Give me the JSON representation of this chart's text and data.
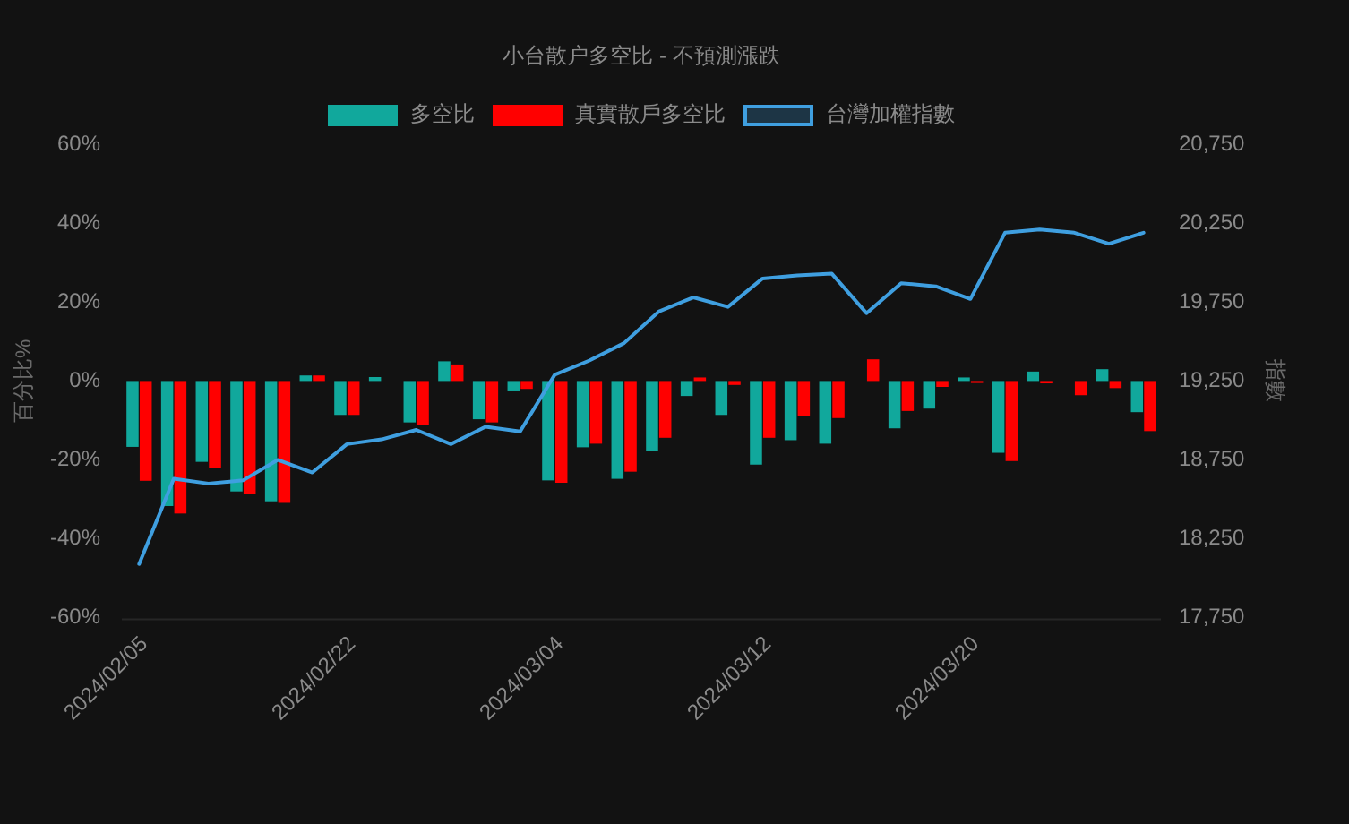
{
  "chart_data": {
    "type": "bar",
    "title": "小台散户多空比 - 不預測漲跌",
    "ylabel": "百分比%",
    "y2label": "指數",
    "legend": "top",
    "categories": [
      "2024/02/05",
      null,
      null,
      null,
      null,
      null,
      "2024/02/22",
      null,
      null,
      null,
      null,
      null,
      "2024/03/04",
      null,
      null,
      null,
      null,
      null,
      "2024/03/12",
      null,
      null,
      null,
      null,
      null,
      "2024/03/20",
      null,
      null,
      null,
      null,
      null
    ],
    "series": [
      {
        "name": "多空比",
        "color": "#11a89c",
        "values": [
          -16.7,
          -31.7,
          -20.5,
          -28.0,
          -30.5,
          1.4,
          -8.6,
          1.0,
          -10.5,
          5.0,
          -9.7,
          -2.4,
          -25.2,
          -16.8,
          -24.8,
          -17.7,
          -3.8,
          -8.6,
          -21.2,
          -15.0,
          -15.9,
          null,
          -12.0,
          -7.0,
          0.9,
          -18.2,
          2.4,
          null,
          3.0,
          -7.9
        ]
      },
      {
        "name": "真實散戶多空比",
        "color": "#ff0000",
        "values": [
          -25.3,
          -33.6,
          -22.0,
          -28.6,
          -30.9,
          1.4,
          -8.6,
          null,
          -11.2,
          4.2,
          -10.5,
          -2.0,
          -25.8,
          -15.9,
          -23.0,
          -14.4,
          0.9,
          -1.0,
          -14.4,
          -8.9,
          -9.4,
          5.5,
          -7.6,
          -1.5,
          -0.5,
          -20.3,
          -0.6,
          -3.6,
          -1.8,
          -12.7
        ]
      },
      {
        "name": "台灣加權指數",
        "type": "line",
        "axis": "y2",
        "color": "#3f9fe0",
        "values": [
          18090,
          18630,
          18600,
          18620,
          18750,
          18670,
          18850,
          18880,
          18940,
          18850,
          18960,
          18930,
          19290,
          19380,
          19490,
          19690,
          19780,
          19720,
          19900,
          19920,
          19930,
          19680,
          19870,
          19850,
          19770,
          20190,
          20210,
          20190,
          20120,
          20190
        ]
      }
    ],
    "ylim": [
      -60,
      60
    ],
    "yticks": [
      {
        "value": -60,
        "label": "-60%"
      },
      {
        "value": -40,
        "label": "-40%"
      },
      {
        "value": -20,
        "label": "-20%"
      },
      {
        "value": 0,
        "label": "0%"
      },
      {
        "value": 20,
        "label": "20%"
      },
      {
        "value": 40,
        "label": "40%"
      },
      {
        "value": 60,
        "label": "60%"
      }
    ],
    "y2lim": [
      17750,
      20750
    ],
    "y2ticks": [
      {
        "value": 17750,
        "label": "17,750"
      },
      {
        "value": 18250,
        "label": "18,250"
      },
      {
        "value": 18750,
        "label": "18,750"
      },
      {
        "value": 19250,
        "label": "19,250"
      },
      {
        "value": 19750,
        "label": "19,750"
      },
      {
        "value": 20250,
        "label": "20,250"
      },
      {
        "value": 20750,
        "label": "20,750"
      }
    ]
  }
}
